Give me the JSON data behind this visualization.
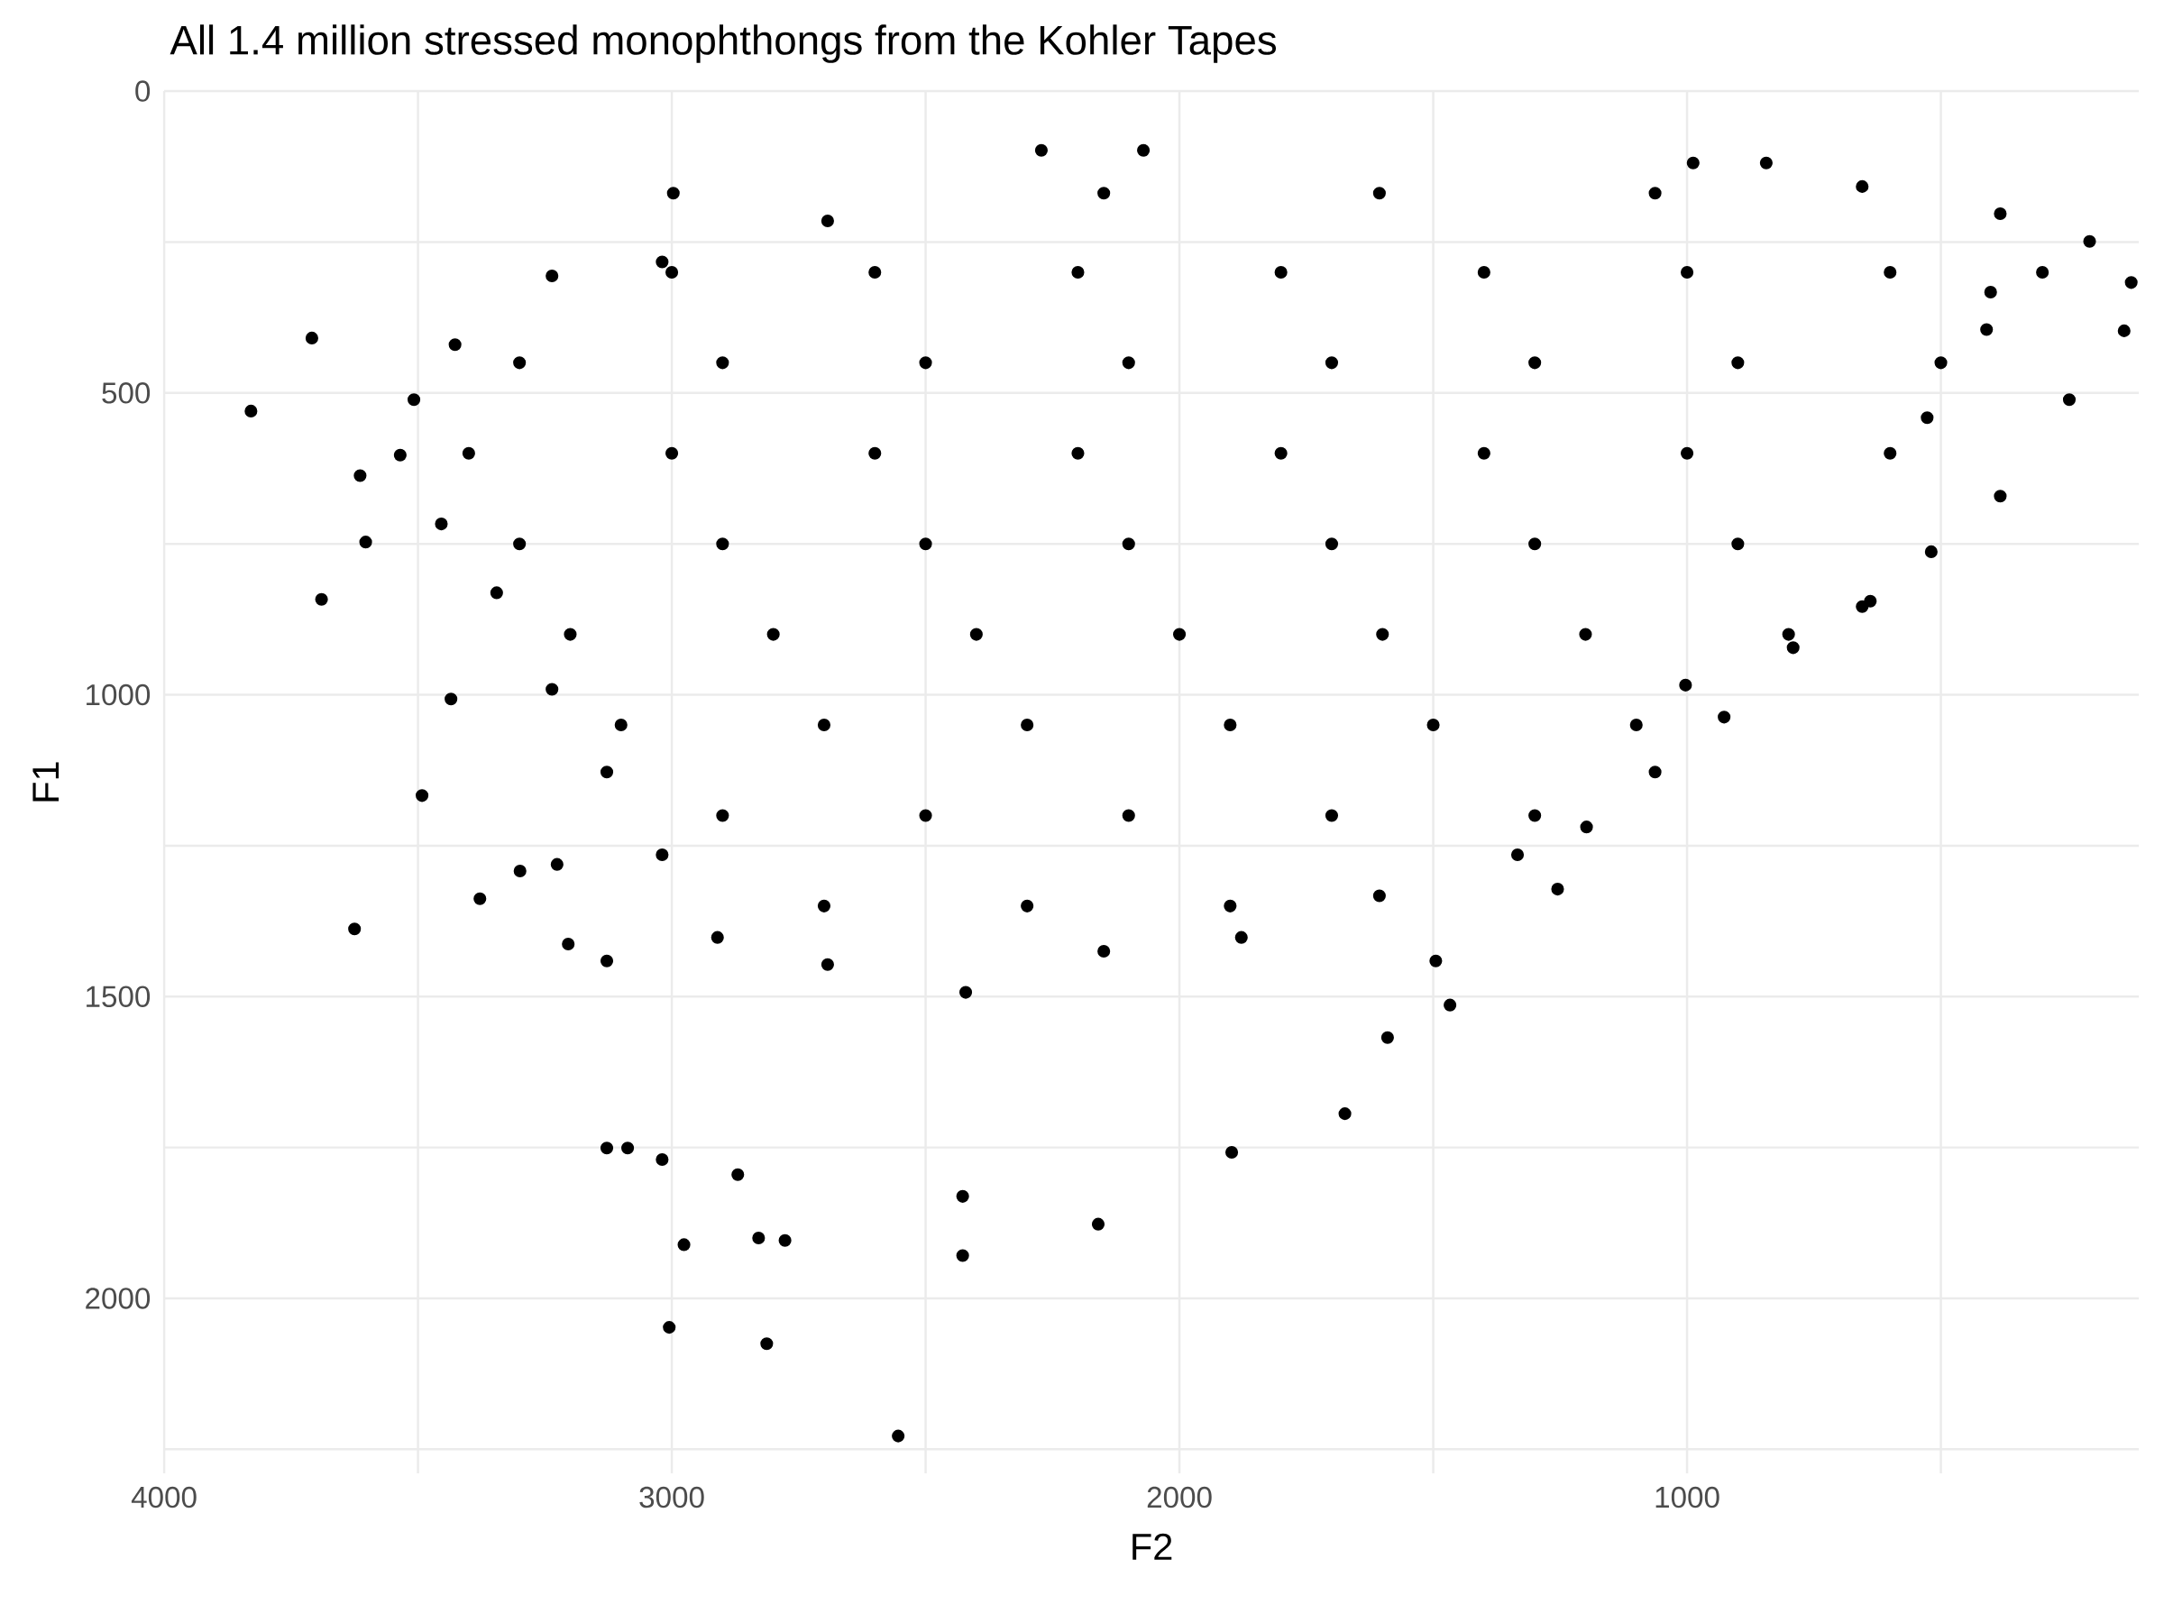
{
  "chart_data": {
    "type": "scatter",
    "title": "All 1.4 million stressed monophthongs from the Kohler Tapes",
    "xlabel": "F2",
    "ylabel": "F1",
    "xlim": [
      4000,
      110
    ],
    "ylim": [
      2290,
      0
    ],
    "xticks": [
      4000,
      {
        "value": 3500,
        "label": null
      },
      3000,
      {
        "value": 2500,
        "label": null
      },
      2000,
      {
        "value": 1500,
        "label": null
      },
      1000,
      {
        "value": 500,
        "label": null
      }
    ],
    "yticks": [
      0,
      {
        "value": 250,
        "label": null
      },
      500,
      {
        "value": 750,
        "label": null
      },
      1000,
      {
        "value": 1250,
        "label": null
      },
      1500,
      {
        "value": 1750,
        "label": null
      },
      2000,
      {
        "value": 2250,
        "label": null
      }
    ],
    "grid": true,
    "marker": "circle",
    "color": "#000000",
    "x": [
      3829,
      3709,
      3690,
      3625,
      3614,
      3603,
      3492,
      3435,
      3299,
      3378,
      3226,
      3204,
      3128,
      3128,
      3087,
      3019,
      3005,
      2976,
      2813,
      2554,
      2870,
      2829,
      2777,
      2427,
      2427,
      2160,
      1897,
      1674,
      1590,
      1467,
      1495,
      2997,
      2071,
      2272,
      988,
      844,
      402,
      410,
      527,
      639,
      1003,
      1255,
      3427,
      3236,
      3019,
      2693,
      2149,
      1606,
      1063,
      655,
      383,
      207,
      125,
      139,
      247,
      383,
      519,
      655,
      791,
      927,
      1063,
      1198,
      1334,
      1606,
      1878,
      2149,
      2421,
      2693,
      2910,
      3019,
      3128,
      3236,
      3345,
      3454,
      3535,
      3508,
      3000,
      2600,
      2200,
      1800,
      1400,
      1000,
      600,
      300,
      3300,
      2900,
      2500,
      2100,
      1700,
      1300,
      900,
      500,
      3400,
      3000,
      2600,
      2200,
      1800,
      1400,
      1000,
      600,
      3300,
      2900,
      2500,
      2100,
      1700,
      1300,
      900,
      3200,
      2800,
      2400,
      2000,
      1600,
      1200,
      800,
      3100,
      2700,
      2300,
      1900,
      1500,
      1100,
      2900,
      2500,
      2100,
      1700,
      1300,
      2700,
      2300,
      1900
    ],
    "values": [
      530,
      409,
      842,
      1388,
      637,
      747,
      1167,
      1007,
      1292,
      1338,
      1281,
      1413,
      1441,
      1751,
      1751,
      1770,
      2048,
      1911,
      2075,
      2228,
      1795,
      1900,
      1904,
      1831,
      1929,
      1877,
      1758,
      1694,
      1568,
      1514,
      1441,
      169,
      98,
      98,
      119,
      119,
      333,
      395,
      541,
      845,
      984,
      1322,
      420,
      306,
      283,
      215,
      169,
      169,
      169,
      158,
      203,
      249,
      317,
      397,
      511,
      671,
      763,
      854,
      922,
      1037,
      1128,
      1219,
      1265,
      1333,
      1402,
      1425,
      1493,
      1447,
      1402,
      1265,
      1128,
      991,
      831,
      717,
      603,
      511,
      300,
      300,
      300,
      300,
      300,
      300,
      300,
      300,
      450,
      450,
      450,
      450,
      450,
      450,
      450,
      450,
      600,
      600,
      600,
      600,
      600,
      600,
      600,
      600,
      750,
      750,
      750,
      750,
      750,
      750,
      750,
      900,
      900,
      900,
      900,
      900,
      900,
      900,
      1050,
      1050,
      1050,
      1050,
      1050,
      1050,
      1200,
      1200,
      1200,
      1200,
      1200,
      1350,
      1350,
      1350
    ]
  }
}
